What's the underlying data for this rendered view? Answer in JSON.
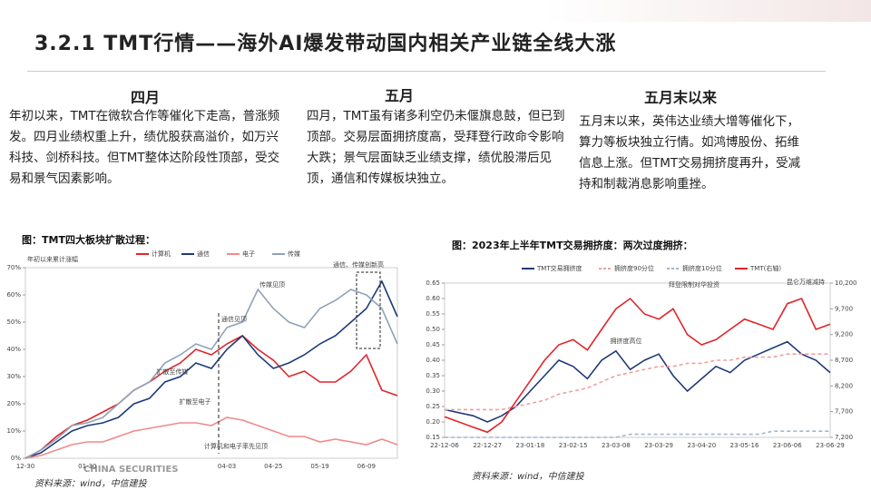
{
  "title": "3.2.1 TMT行情——海外AI爆发带动国内相关产业链全线大涨",
  "columns": [
    {
      "heading": "四月",
      "text": "年初以来，TMT在微软合作等催化下走高，普涨频发。四月业绩权重上升，绩优股获高溢价，如万兴科技、剑桥科技。但TMT整体达阶段性顶部，受交易和景气因素影响。"
    },
    {
      "heading": "五月",
      "text": "四月，TMT虽有诸多利空仍未偃旗息鼓，但已到顶部。交易层面拥挤度高，受拜登行政命令影响大跌；景气层面缺乏业绩支撑，绩优股滞后见顶，通信和传媒板块独立。"
    },
    {
      "heading": "五月末以来",
      "text": "五月末以来，英伟达业绩大增等催化下，算力等板块独立行情。如鸿博股份、拓维信息上涨。但TMT交易拥挤度再升，受减持和制裁消息影响重挫。"
    }
  ],
  "logo": "CHINA SECURITIES",
  "chart_data": [
    {
      "type": "line",
      "title": "图：TMT四大板块扩散过程：",
      "ylabel": "年初以来累计涨幅",
      "source": "资料来源：wind，中信建投",
      "categories": [
        "12-30",
        null,
        null,
        null,
        "01-30",
        null,
        null,
        null,
        null,
        null,
        null,
        null,
        null,
        "04-03",
        null,
        null,
        "04-25",
        null,
        null,
        "05-19",
        null,
        null,
        "06-09",
        null,
        null
      ],
      "series": [
        {
          "name": "计算机",
          "color": "#e0252b",
          "values": [
            0,
            3,
            8,
            12,
            14,
            17,
            20,
            25,
            28,
            32,
            35,
            40,
            38,
            42,
            45,
            40,
            36,
            30,
            32,
            28,
            28,
            32,
            38,
            25,
            23
          ]
        },
        {
          "name": "通信",
          "color": "#1f3a7a",
          "values": [
            0,
            2,
            6,
            10,
            12,
            13,
            15,
            20,
            22,
            28,
            30,
            35,
            33,
            40,
            45,
            38,
            33,
            35,
            38,
            42,
            45,
            50,
            55,
            65,
            52
          ]
        },
        {
          "name": "电子",
          "color": "#f08a8a",
          "values": [
            0,
            1,
            3,
            5,
            6,
            6,
            8,
            10,
            11,
            12,
            13,
            13,
            12,
            15,
            14,
            12,
            10,
            8,
            8,
            6,
            7,
            6,
            5,
            7,
            5
          ]
        },
        {
          "name": "传媒",
          "color": "#8fa3b8",
          "values": [
            0,
            3,
            7,
            12,
            13,
            15,
            20,
            25,
            28,
            35,
            38,
            42,
            40,
            48,
            50,
            62,
            55,
            50,
            48,
            55,
            58,
            62,
            60,
            55,
            42
          ]
        }
      ],
      "ylim": [
        0,
        70
      ],
      "yticks": [
        {
          "value": 0,
          "label": "0%"
        },
        {
          "value": 10,
          "label": "10%"
        },
        {
          "value": 20,
          "label": "20%"
        },
        {
          "value": 30,
          "label": "30%"
        },
        {
          "value": 40,
          "label": "40%"
        },
        {
          "value": 50,
          "label": "50%"
        },
        {
          "value": 60,
          "label": "60%"
        },
        {
          "value": 70,
          "label": "70%"
        }
      ],
      "annotations": [
        "通信、传媒创新高",
        "传媒见顶",
        "通信见顶",
        "扩散至传媒",
        "扩散至电子",
        "计算机和电子率先见顶"
      ]
    },
    {
      "type": "line",
      "title": "图：2023年上半年TMT交易拥挤度：两次过度拥挤：",
      "source": "资料来源：wind，中信建投",
      "categories": [
        "22-12-06",
        null,
        null,
        "22-12-27",
        null,
        null,
        "23-01-18",
        null,
        null,
        "23-02-15",
        null,
        null,
        "23-03-08",
        null,
        null,
        "23-03-29",
        null,
        null,
        "23-04-20",
        null,
        null,
        "23-05-16",
        null,
        null,
        "23-06-06",
        null,
        null,
        "23-06-29"
      ],
      "series": [
        {
          "name": "TMT交易拥挤度",
          "color": "#1f3a7a",
          "values": [
            0.24,
            0.23,
            0.22,
            0.2,
            0.22,
            0.25,
            0.3,
            0.35,
            0.4,
            0.38,
            0.34,
            0.4,
            0.43,
            0.37,
            0.4,
            0.42,
            0.35,
            0.3,
            0.34,
            0.38,
            0.36,
            0.4,
            0.42,
            0.44,
            0.46,
            0.42,
            0.4,
            0.36
          ]
        },
        {
          "name": "拥挤度90分位",
          "color": "#f0a0a0",
          "dash": true,
          "values": [
            0.24,
            0.24,
            0.24,
            0.24,
            0.24,
            0.25,
            0.26,
            0.27,
            0.29,
            0.3,
            0.31,
            0.33,
            0.35,
            0.36,
            0.37,
            0.38,
            0.38,
            0.39,
            0.39,
            0.4,
            0.4,
            0.41,
            0.41,
            0.41,
            0.42,
            0.42,
            0.42,
            0.42
          ]
        },
        {
          "name": "拥挤度10分位",
          "color": "#9fb8d0",
          "dash": true,
          "values": [
            0.15,
            0.15,
            0.15,
            0.15,
            0.15,
            0.15,
            0.15,
            0.15,
            0.15,
            0.15,
            0.15,
            0.15,
            0.15,
            0.16,
            0.16,
            0.16,
            0.16,
            0.16,
            0.16,
            0.16,
            0.16,
            0.16,
            0.16,
            0.17,
            0.17,
            0.17,
            0.17,
            0.17
          ]
        },
        {
          "name": "TMT(右轴)",
          "color": "#e0252b",
          "axis": "y2",
          "values": [
            7600,
            7500,
            7400,
            7300,
            7500,
            7900,
            8300,
            8700,
            9000,
            9100,
            8900,
            9300,
            9700,
            9900,
            9600,
            9500,
            9700,
            9200,
            9000,
            9100,
            9300,
            9500,
            9400,
            9300,
            9800,
            9900,
            9300,
            9400
          ]
        }
      ],
      "ylim": [
        0.15,
        0.65
      ],
      "yticks": [
        0.15,
        {
          "value": 0.2,
          "label": "0.20"
        },
        0.25,
        {
          "value": 0.3,
          "label": "0.30"
        },
        0.35,
        {
          "value": 0.4,
          "label": "0.40"
        },
        0.45,
        {
          "value": 0.5,
          "label": "0.50"
        },
        0.55,
        {
          "value": 0.6,
          "label": "0.60"
        },
        0.65
      ],
      "y2lim": [
        7200,
        10200
      ],
      "y2ticks": [
        {
          "value": 7200,
          "label": "7,200"
        },
        {
          "value": 7700,
          "label": "7,700"
        },
        {
          "value": 8200,
          "label": "8,200"
        },
        {
          "value": 8700,
          "label": "8,700"
        },
        {
          "value": 9200,
          "label": "9,200"
        },
        {
          "value": 9700,
          "label": "9,700"
        },
        {
          "value": 10200,
          "label": "10,200"
        }
      ],
      "annotations": [
        "拥挤度高位",
        "拜登限制对华投资",
        "昆仑万维减持"
      ]
    }
  ]
}
